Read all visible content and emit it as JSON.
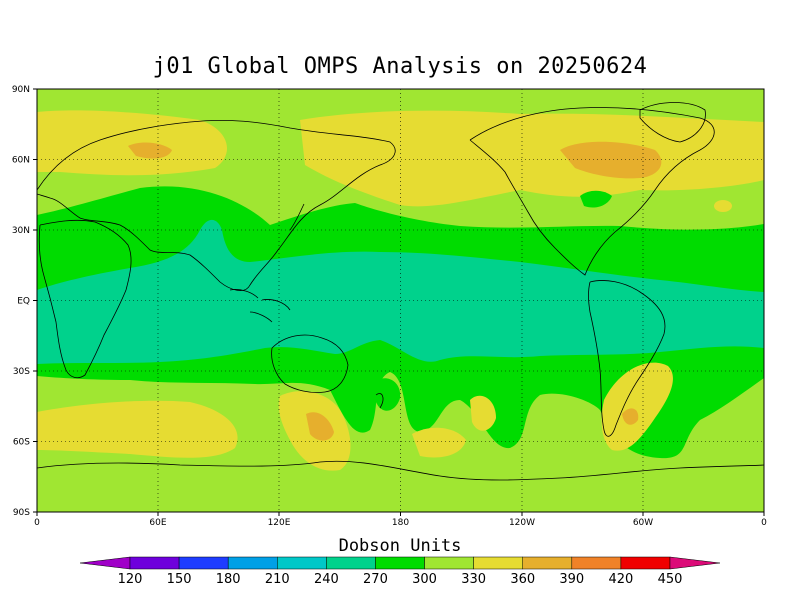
{
  "title": "j01 Global OMPS Analysis on 20250624",
  "colorbar": {
    "title": "Dobson Units",
    "tick_labels": [
      "120",
      "150",
      "180",
      "210",
      "240",
      "270",
      "300",
      "330",
      "360",
      "390",
      "420",
      "450"
    ],
    "colors": [
      "#a000c8",
      "#6e00dc",
      "#1e3cff",
      "#00a0e6",
      "#00c8c8",
      "#00d28c",
      "#00dc00",
      "#a0e632",
      "#e6dc32",
      "#e6af2d",
      "#f08228",
      "#f00000",
      "#dc0a78"
    ]
  },
  "map": {
    "lat_labels": [
      "90N",
      "60N",
      "30N",
      "EQ",
      "30S",
      "60S",
      "90S"
    ],
    "lon_labels": [
      "0",
      "60E",
      "120E",
      "180",
      "120W",
      "60W",
      "0"
    ],
    "grid": "dotted",
    "background_color": "#a0e632",
    "coastline_color": "#000000"
  }
}
